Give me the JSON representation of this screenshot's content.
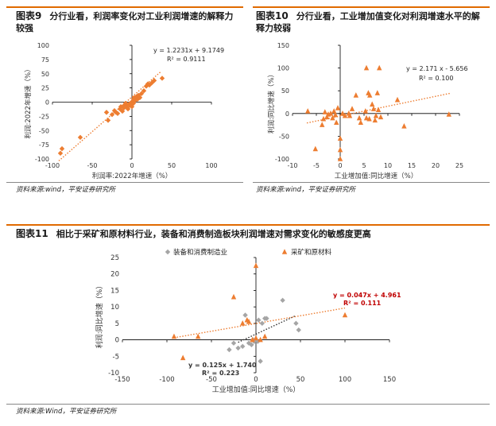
{
  "panels": [
    {
      "number": "图表9",
      "title": "分行业看，利润率变化对工业利润增速的解释力较强",
      "source": "资料来源:wind，平安证券研究所"
    },
    {
      "number": "图表10",
      "title": "分行业看，工业增加值变化对利润增速水平的解释力较弱",
      "source": "资料来源:wind，平安证券研究所"
    },
    {
      "number": "图表11",
      "title": "相比于采矿和原材料行业，装备和消费制造板块利润增速对需求变化的敏感度更高",
      "source": "资料来源:Wind，平安证券研究所"
    }
  ],
  "colors": {
    "orange": "#ed7d31",
    "gray": "#a5a5a5",
    "red": "#c00000",
    "rule": "#e06a00"
  },
  "chart_data": [
    {
      "type": "scatter",
      "title": "",
      "xlabel": "利润率:2022年增速（%）",
      "ylabel": "利润:2022年增速（%）",
      "xlim": [
        -100,
        100
      ],
      "ylim": [
        -100,
        100
      ],
      "xticks": [
        -100,
        -50,
        0,
        50,
        100
      ],
      "yticks": [
        -100,
        -75,
        -50,
        -25,
        0,
        25,
        50,
        75,
        100
      ],
      "marker": "diamond",
      "grid": false,
      "series": [
        {
          "points": [
            [
              -90,
              -90
            ],
            [
              -88,
              -82
            ],
            [
              -65,
              -62
            ],
            [
              -32,
              -18
            ],
            [
              -30,
              -32
            ],
            [
              -25,
              -22
            ],
            [
              -22,
              -15
            ],
            [
              -20,
              -18
            ],
            [
              -18,
              -20
            ],
            [
              -15,
              -12
            ],
            [
              -14,
              -8
            ],
            [
              -12,
              -16
            ],
            [
              -10,
              -6
            ],
            [
              -10,
              -10
            ],
            [
              -8,
              -2
            ],
            [
              -7,
              -8
            ],
            [
              -6,
              -5
            ],
            [
              -5,
              -12
            ],
            [
              -4,
              -4
            ],
            [
              -3,
              -6
            ],
            [
              -2,
              -2
            ],
            [
              -1,
              -4
            ],
            [
              0,
              -8
            ],
            [
              0,
              0
            ],
            [
              1,
              2
            ],
            [
              2,
              5
            ],
            [
              2,
              -2
            ],
            [
              3,
              8
            ],
            [
              4,
              3
            ],
            [
              5,
              6
            ],
            [
              6,
              10
            ],
            [
              7,
              5
            ],
            [
              8,
              12
            ],
            [
              10,
              8
            ],
            [
              12,
              15
            ],
            [
              15,
              20
            ],
            [
              18,
              28
            ],
            [
              20,
              32
            ],
            [
              22,
              30
            ],
            [
              25,
              34
            ],
            [
              28,
              38
            ],
            [
              38,
              42
            ]
          ]
        }
      ],
      "trendline": {
        "slope": 1.2231,
        "intercept": 9.1749
      },
      "equation": "y = 1.2231x + 9.1749",
      "r2": "R² = 0.9111"
    },
    {
      "type": "scatter",
      "title": "",
      "xlabel": "工业增加值:同比增速（%）",
      "ylabel": "利润:同比增速（%）",
      "xlim": [
        -10,
        25
      ],
      "ylim": [
        -100,
        150
      ],
      "xticks": [
        -10,
        -5,
        0,
        5,
        10,
        15,
        20,
        25
      ],
      "yticks": [
        -100,
        -50,
        0,
        50,
        100,
        150
      ],
      "marker": "triangle",
      "grid": false,
      "series": [
        {
          "points": [
            [
              -6.8,
              5
            ],
            [
              -5.2,
              -78
            ],
            [
              -3.8,
              -25
            ],
            [
              -3.5,
              -12
            ],
            [
              -3.2,
              3
            ],
            [
              -2.8,
              -8
            ],
            [
              -2.5,
              -2
            ],
            [
              -2,
              0
            ],
            [
              -1.6,
              -10
            ],
            [
              -1.3,
              5
            ],
            [
              -1,
              -3
            ],
            [
              -0.8,
              -20
            ],
            [
              -0.5,
              12
            ],
            [
              0,
              -55
            ],
            [
              0,
              -80
            ],
            [
              0,
              -100
            ],
            [
              0.5,
              0
            ],
            [
              1,
              -5
            ],
            [
              1.8,
              0
            ],
            [
              2,
              -5
            ],
            [
              2.5,
              10
            ],
            [
              3.3,
              40
            ],
            [
              4,
              -10
            ],
            [
              4.3,
              -20
            ],
            [
              5.3,
              5
            ],
            [
              5.5,
              -10
            ],
            [
              5.5,
              100
            ],
            [
              5.9,
              45
            ],
            [
              6.1,
              -12
            ],
            [
              6.2,
              40
            ],
            [
              6.7,
              20
            ],
            [
              7,
              10
            ],
            [
              7.3,
              -15
            ],
            [
              7.5,
              -5
            ],
            [
              7.8,
              45
            ],
            [
              8,
              8
            ],
            [
              8.2,
              100
            ],
            [
              8.5,
              -8
            ],
            [
              12,
              30
            ],
            [
              13.4,
              -28
            ],
            [
              22.8,
              -2
            ]
          ]
        }
      ],
      "trendline": {
        "slope": 2.171,
        "intercept": -5.656
      },
      "equation": "y = 2.171 x - 5.656",
      "r2": "R² = 0.100"
    },
    {
      "type": "scatter",
      "title": "",
      "xlabel": "工业增加值:同比增速（%）",
      "ylabel": "利润:同比增速（%）",
      "xlim": [
        -150,
        150
      ],
      "ylim": [
        -10,
        25
      ],
      "xticks": [
        -150,
        -100,
        -50,
        0,
        50,
        100,
        150
      ],
      "yticks": [
        -10,
        -5,
        0,
        5,
        10,
        15,
        20,
        25
      ],
      "legend": "top",
      "grid": false,
      "series": [
        {
          "name": "装备和消费制造业",
          "marker": "diamond",
          "color": "#a5a5a5",
          "points": [
            [
              -30,
              -3
            ],
            [
              -25,
              -1
            ],
            [
              -20,
              -2.5
            ],
            [
              -15,
              -2
            ],
            [
              -12,
              7.5
            ],
            [
              -8,
              -1
            ],
            [
              -5,
              -1.5
            ],
            [
              -3,
              0
            ],
            [
              -2,
              -0.5
            ],
            [
              0,
              0
            ],
            [
              2,
              -0.5
            ],
            [
              3,
              6
            ],
            [
              5,
              -6.5
            ],
            [
              7,
              5
            ],
            [
              10,
              6.5
            ],
            [
              12,
              6.5
            ],
            [
              30,
              12
            ],
            [
              45,
              5
            ],
            [
              48,
              3
            ]
          ]
        },
        {
          "name": "采矿和原材料",
          "marker": "triangle",
          "color": "#ed7d31",
          "points": [
            [
              -92,
              1
            ],
            [
              -82,
              -5.5
            ],
            [
              -65,
              1
            ],
            [
              -25,
              13
            ],
            [
              -15,
              5
            ],
            [
              -10,
              6
            ],
            [
              -8,
              5.5
            ],
            [
              -4,
              0
            ],
            [
              0,
              22.5
            ],
            [
              0,
              0.5
            ],
            [
              5,
              0
            ],
            [
              10,
              1
            ],
            [
              100,
              7.5
            ]
          ]
        }
      ],
      "trendlines": [
        {
          "series": "装备和消费制造业",
          "slope": 0.125,
          "intercept": 1.74,
          "color": "#333333",
          "x_range": [
            -20,
            45
          ],
          "equation": "y = 0.125x + 1.740",
          "r2": "R² = 0.223"
        },
        {
          "series": "采矿和原材料",
          "slope": 0.047,
          "intercept": 4.961,
          "color": "#ed7d31",
          "x_range": [
            -92,
            100
          ],
          "equation": "y = 0.047x + 4.961",
          "r2": "R² = 0.111"
        }
      ]
    }
  ]
}
